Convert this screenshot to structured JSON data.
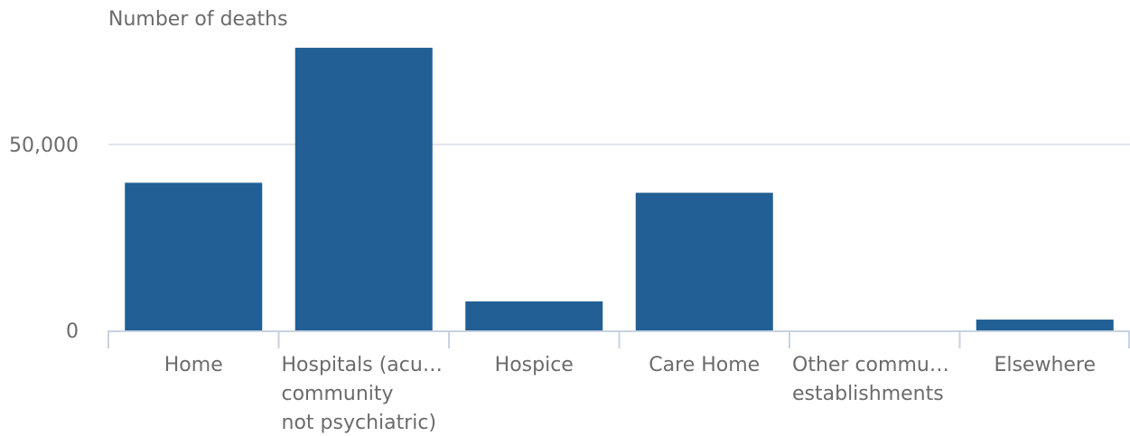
{
  "chart_data": {
    "type": "bar",
    "title": "",
    "xlabel": "",
    "ylabel": "Number of deaths",
    "categories": [
      "Home",
      "Hospitals (acu… community not psychiatric)",
      "Hospice",
      "Care Home",
      "Other commu… establishments",
      "Elsewhere"
    ],
    "category_lines": [
      [
        "Home"
      ],
      [
        "Hospitals (acu…",
        "community",
        "not psychiatric)"
      ],
      [
        "Hospice"
      ],
      [
        "Care Home"
      ],
      [
        "Other commu…",
        "establishments"
      ],
      [
        "Elsewhere"
      ]
    ],
    "values": [
      39700,
      76000,
      7800,
      37000,
      0,
      2900
    ],
    "ylim": [
      0,
      80000
    ],
    "yticks": [
      0,
      50000
    ],
    "ytick_labels": [
      "0",
      "50,000"
    ],
    "grid": true,
    "colors": {
      "bar": "#215f94",
      "grid": "#e1e5ec",
      "axis": "#c8d2e0",
      "text": "#6b6b6b"
    }
  }
}
